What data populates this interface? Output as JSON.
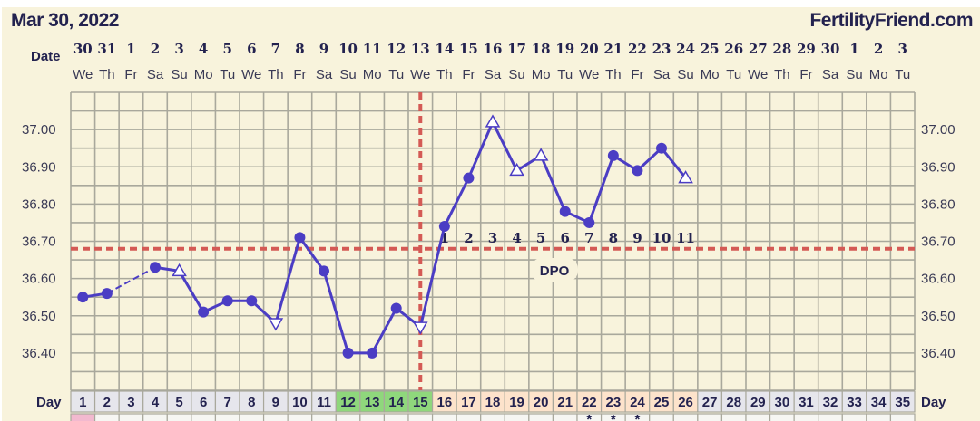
{
  "header": {
    "date": "Mar 30, 2022",
    "brand": "FertilityFriend.com"
  },
  "labels": {
    "date": "Date",
    "day": "Day",
    "dpo": "DPO"
  },
  "colors": {
    "background": "#f8f3dc",
    "grid": "#a9a89c",
    "line": "#4b3dc4",
    "coverline": "#d45a55",
    "fertile": "#8fd77c",
    "luteal": "#fde3cb",
    "day_cell": "#e6e6ec",
    "period": "#f2b9cf"
  },
  "chart_data": {
    "type": "line",
    "ylim": [
      36.3,
      37.1
    ],
    "y_ticks": [
      "37.00",
      "36.90",
      "36.80",
      "36.70",
      "36.60",
      "36.50",
      "36.40"
    ],
    "grid": true,
    "dates": [
      "30",
      "31",
      "1",
      "2",
      "3",
      "4",
      "5",
      "6",
      "7",
      "8",
      "9",
      "10",
      "11",
      "12",
      "13",
      "14",
      "15",
      "16",
      "17",
      "18",
      "19",
      "20",
      "21",
      "22",
      "23",
      "24",
      "25",
      "26",
      "27",
      "28",
      "29",
      "30",
      "1",
      "2",
      "3"
    ],
    "weekdays": [
      "We",
      "Th",
      "Fr",
      "Sa",
      "Su",
      "Mo",
      "Tu",
      "We",
      "Th",
      "Fr",
      "Sa",
      "Su",
      "Mo",
      "Tu",
      "We",
      "Th",
      "Fr",
      "Sa",
      "Su",
      "Mo",
      "Tu",
      "We",
      "Th",
      "Fr",
      "Sa",
      "Su",
      "Mo",
      "Tu",
      "We",
      "Th",
      "Fr",
      "Sa",
      "Su",
      "Mo",
      "Tu"
    ],
    "cycle_days": [
      "1",
      "2",
      "3",
      "4",
      "5",
      "6",
      "7",
      "8",
      "9",
      "10",
      "11",
      "12",
      "13",
      "14",
      "15",
      "16",
      "17",
      "18",
      "19",
      "20",
      "21",
      "22",
      "23",
      "24",
      "25",
      "26",
      "27",
      "28",
      "29",
      "30",
      "31",
      "32",
      "33",
      "34",
      "35"
    ],
    "temperatures": [
      {
        "day": 1,
        "value": 36.55,
        "marker": "circle"
      },
      {
        "day": 2,
        "value": 36.56,
        "marker": "circle"
      },
      {
        "day": 4,
        "value": 36.63,
        "marker": "circle"
      },
      {
        "day": 5,
        "value": 36.62,
        "marker": "triangle-up"
      },
      {
        "day": 6,
        "value": 36.51,
        "marker": "circle"
      },
      {
        "day": 7,
        "value": 36.54,
        "marker": "circle"
      },
      {
        "day": 8,
        "value": 36.54,
        "marker": "circle"
      },
      {
        "day": 9,
        "value": 36.48,
        "marker": "triangle-down"
      },
      {
        "day": 10,
        "value": 36.71,
        "marker": "circle"
      },
      {
        "day": 11,
        "value": 36.62,
        "marker": "circle"
      },
      {
        "day": 12,
        "value": 36.4,
        "marker": "circle"
      },
      {
        "day": 13,
        "value": 36.4,
        "marker": "circle"
      },
      {
        "day": 14,
        "value": 36.52,
        "marker": "circle"
      },
      {
        "day": 15,
        "value": 36.47,
        "marker": "triangle-down"
      },
      {
        "day": 16,
        "value": 36.74,
        "marker": "circle"
      },
      {
        "day": 17,
        "value": 36.87,
        "marker": "circle"
      },
      {
        "day": 18,
        "value": 37.02,
        "marker": "triangle-up"
      },
      {
        "day": 19,
        "value": 36.89,
        "marker": "triangle-up"
      },
      {
        "day": 20,
        "value": 36.93,
        "marker": "triangle-up"
      },
      {
        "day": 21,
        "value": 36.78,
        "marker": "circle"
      },
      {
        "day": 22,
        "value": 36.75,
        "marker": "circle"
      },
      {
        "day": 23,
        "value": 36.93,
        "marker": "circle"
      },
      {
        "day": 24,
        "value": 36.89,
        "marker": "circle"
      },
      {
        "day": 25,
        "value": 36.95,
        "marker": "circle"
      },
      {
        "day": 26,
        "value": 36.87,
        "marker": "triangle-up"
      }
    ],
    "coverline": 36.68,
    "ovulation_day": 15,
    "dpo": [
      "1",
      "2",
      "3",
      "4",
      "5",
      "6",
      "7",
      "8",
      "9",
      "10",
      "11"
    ],
    "dpo_start_day": 16,
    "fertile_days": [
      12,
      13,
      14,
      15
    ],
    "luteal_days": [
      16,
      17,
      18,
      19,
      20,
      21,
      22,
      23,
      24,
      25,
      26
    ],
    "period_days": [
      1
    ],
    "asterisk_days": [
      22,
      23,
      24
    ]
  }
}
